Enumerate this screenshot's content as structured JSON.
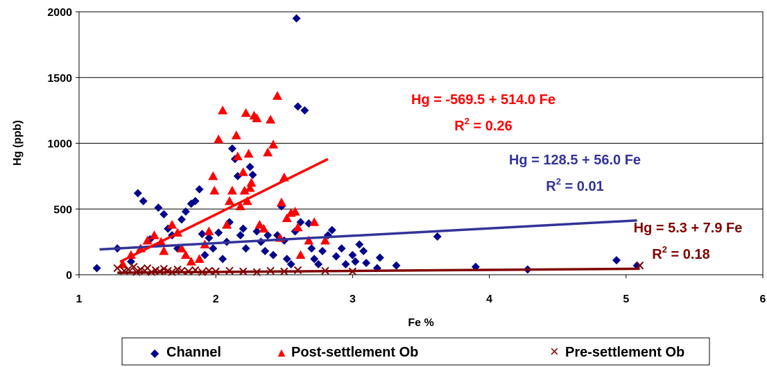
{
  "colors": {
    "channel": "#00008B",
    "post": "#FF0000",
    "pre": "#800000",
    "channel_fit": "#333399",
    "post_fit": "#FF0000",
    "pre_fit": "#800000",
    "gridline": "#000000"
  },
  "chart_data": {
    "type": "scatter",
    "xlabel": "Fe %",
    "ylabel": "Hg (ppb)",
    "xlim": [
      1,
      6
    ],
    "ylim": [
      0,
      2000
    ],
    "xticks": [
      "1",
      "2",
      "3",
      "4",
      "5",
      "6"
    ],
    "yticks": [
      "0",
      "500",
      "1000",
      "1500",
      "2000"
    ],
    "grid": "horizontal",
    "legend_position": "bottom",
    "series": [
      {
        "name": "Channel",
        "marker": "diamond",
        "color": "#00008B",
        "points": [
          [
            1.13,
            50
          ],
          [
            1.28,
            200
          ],
          [
            1.38,
            100
          ],
          [
            1.43,
            620
          ],
          [
            1.47,
            560
          ],
          [
            1.52,
            270
          ],
          [
            1.58,
            510
          ],
          [
            1.62,
            460
          ],
          [
            1.65,
            350
          ],
          [
            1.68,
            300
          ],
          [
            1.72,
            200
          ],
          [
            1.75,
            420
          ],
          [
            1.78,
            480
          ],
          [
            1.82,
            540
          ],
          [
            1.85,
            560
          ],
          [
            1.88,
            650
          ],
          [
            1.9,
            310
          ],
          [
            1.92,
            150
          ],
          [
            1.95,
            280
          ],
          [
            1.98,
            200
          ],
          [
            2.02,
            320
          ],
          [
            2.05,
            120
          ],
          [
            2.08,
            250
          ],
          [
            2.1,
            400
          ],
          [
            2.12,
            960
          ],
          [
            2.14,
            880
          ],
          [
            2.16,
            750
          ],
          [
            2.18,
            300
          ],
          [
            2.2,
            350
          ],
          [
            2.22,
            200
          ],
          [
            2.25,
            820
          ],
          [
            2.27,
            760
          ],
          [
            2.3,
            330
          ],
          [
            2.33,
            250
          ],
          [
            2.36,
            180
          ],
          [
            2.38,
            300
          ],
          [
            2.42,
            150
          ],
          [
            2.45,
            300
          ],
          [
            2.48,
            520
          ],
          [
            2.5,
            260
          ],
          [
            2.52,
            120
          ],
          [
            2.55,
            80
          ],
          [
            2.58,
            330
          ],
          [
            2.59,
            1950
          ],
          [
            2.6,
            1280
          ],
          [
            2.62,
            400
          ],
          [
            2.65,
            1250
          ],
          [
            2.68,
            390
          ],
          [
            2.7,
            200
          ],
          [
            2.72,
            120
          ],
          [
            2.75,
            80
          ],
          [
            2.78,
            180
          ],
          [
            2.82,
            300
          ],
          [
            2.85,
            340
          ],
          [
            2.88,
            140
          ],
          [
            2.92,
            200
          ],
          [
            2.95,
            80
          ],
          [
            3.0,
            150
          ],
          [
            3.02,
            100
          ],
          [
            3.05,
            230
          ],
          [
            3.08,
            180
          ],
          [
            3.1,
            90
          ],
          [
            3.18,
            50
          ],
          [
            3.2,
            130
          ],
          [
            3.32,
            70
          ],
          [
            3.62,
            290
          ],
          [
            3.9,
            60
          ],
          [
            4.28,
            40
          ],
          [
            4.93,
            110
          ],
          [
            5.08,
            70
          ]
        ]
      },
      {
        "name": "Post-settlement Ob",
        "marker": "triangle",
        "color": "#FF0000",
        "points": [
          [
            1.32,
            80
          ],
          [
            1.38,
            150
          ],
          [
            1.45,
            200
          ],
          [
            1.5,
            260
          ],
          [
            1.55,
            300
          ],
          [
            1.6,
            250
          ],
          [
            1.62,
            180
          ],
          [
            1.68,
            380
          ],
          [
            1.72,
            320
          ],
          [
            1.75,
            200
          ],
          [
            1.78,
            150
          ],
          [
            1.82,
            100
          ],
          [
            1.88,
            120
          ],
          [
            1.92,
            230
          ],
          [
            1.95,
            330
          ],
          [
            1.98,
            750
          ],
          [
            1.99,
            640
          ],
          [
            2.02,
            1030
          ],
          [
            2.05,
            1250
          ],
          [
            2.08,
            380
          ],
          [
            2.1,
            560
          ],
          [
            2.12,
            640
          ],
          [
            2.15,
            1060
          ],
          [
            2.16,
            900
          ],
          [
            2.18,
            520
          ],
          [
            2.2,
            780
          ],
          [
            2.21,
            640
          ],
          [
            2.22,
            1230
          ],
          [
            2.23,
            560
          ],
          [
            2.24,
            920
          ],
          [
            2.25,
            660
          ],
          [
            2.26,
            700
          ],
          [
            2.28,
            1210
          ],
          [
            2.3,
            1190
          ],
          [
            2.32,
            380
          ],
          [
            2.35,
            350
          ],
          [
            2.38,
            930
          ],
          [
            2.4,
            1180
          ],
          [
            2.42,
            990
          ],
          [
            2.45,
            1360
          ],
          [
            2.47,
            280
          ],
          [
            2.48,
            550
          ],
          [
            2.5,
            740
          ],
          [
            2.52,
            430
          ],
          [
            2.55,
            470
          ],
          [
            2.58,
            480
          ],
          [
            2.6,
            360
          ],
          [
            2.62,
            150
          ],
          [
            2.68,
            260
          ],
          [
            2.72,
            400
          ],
          [
            2.8,
            260
          ]
        ]
      },
      {
        "name": "Pre-settlement Ob",
        "marker": "x",
        "color": "#800000",
        "points": [
          [
            1.28,
            50
          ],
          [
            1.33,
            30
          ],
          [
            1.36,
            40
          ],
          [
            1.4,
            60
          ],
          [
            1.42,
            20
          ],
          [
            1.45,
            40
          ],
          [
            1.48,
            30
          ],
          [
            1.5,
            50
          ],
          [
            1.53,
            20
          ],
          [
            1.56,
            35
          ],
          [
            1.59,
            25
          ],
          [
            1.62,
            45
          ],
          [
            1.65,
            30
          ],
          [
            1.68,
            20
          ],
          [
            1.72,
            40
          ],
          [
            1.75,
            30
          ],
          [
            1.8,
            25
          ],
          [
            1.85,
            35
          ],
          [
            1.9,
            20
          ],
          [
            1.95,
            30
          ],
          [
            2.0,
            25
          ],
          [
            2.1,
            30
          ],
          [
            2.2,
            25
          ],
          [
            2.3,
            20
          ],
          [
            2.4,
            30
          ],
          [
            2.5,
            25
          ],
          [
            2.6,
            35
          ],
          [
            2.8,
            30
          ],
          [
            3.0,
            25
          ],
          [
            5.1,
            70
          ]
        ]
      }
    ],
    "trendlines": [
      {
        "series": "Channel",
        "intercept": 128.5,
        "slope": 56.0,
        "x_range": [
          1.15,
          5.08
        ],
        "color": "#333399"
      },
      {
        "series": "Post-settlement Ob",
        "intercept": -569.5,
        "slope": 514.0,
        "x_range": [
          1.3,
          2.82
        ],
        "color": "#FF0000"
      },
      {
        "series": "Pre-settlement Ob",
        "intercept": 5.3,
        "slope": 7.9,
        "x_range": [
          1.28,
          5.1
        ],
        "color": "#800000"
      }
    ],
    "annotations": [
      {
        "equation": "Hg = -569.5 + 514.0 Fe",
        "r2_label": "R",
        "r2_sup": "2",
        "r2_value": " = 0.26",
        "color": "#FF0000"
      },
      {
        "equation": "Hg = 128.5 + 56.0 Fe",
        "r2_label": "R",
        "r2_sup": "2",
        "r2_value": " = 0.01",
        "color": "#333399"
      },
      {
        "equation": "Hg = 5.3 + 7.9 Fe",
        "r2_label": "R",
        "r2_sup": "2",
        "r2_value": " = 0.18",
        "color": "#800000"
      }
    ],
    "legend": [
      {
        "label": "Channel",
        "symbol": "◆",
        "color": "#00008B"
      },
      {
        "label": "Post-settlement Ob",
        "symbol": "▲",
        "color": "#FF0000"
      },
      {
        "label": "Pre-settlement Ob",
        "symbol": "×",
        "color": "#800000"
      }
    ]
  }
}
